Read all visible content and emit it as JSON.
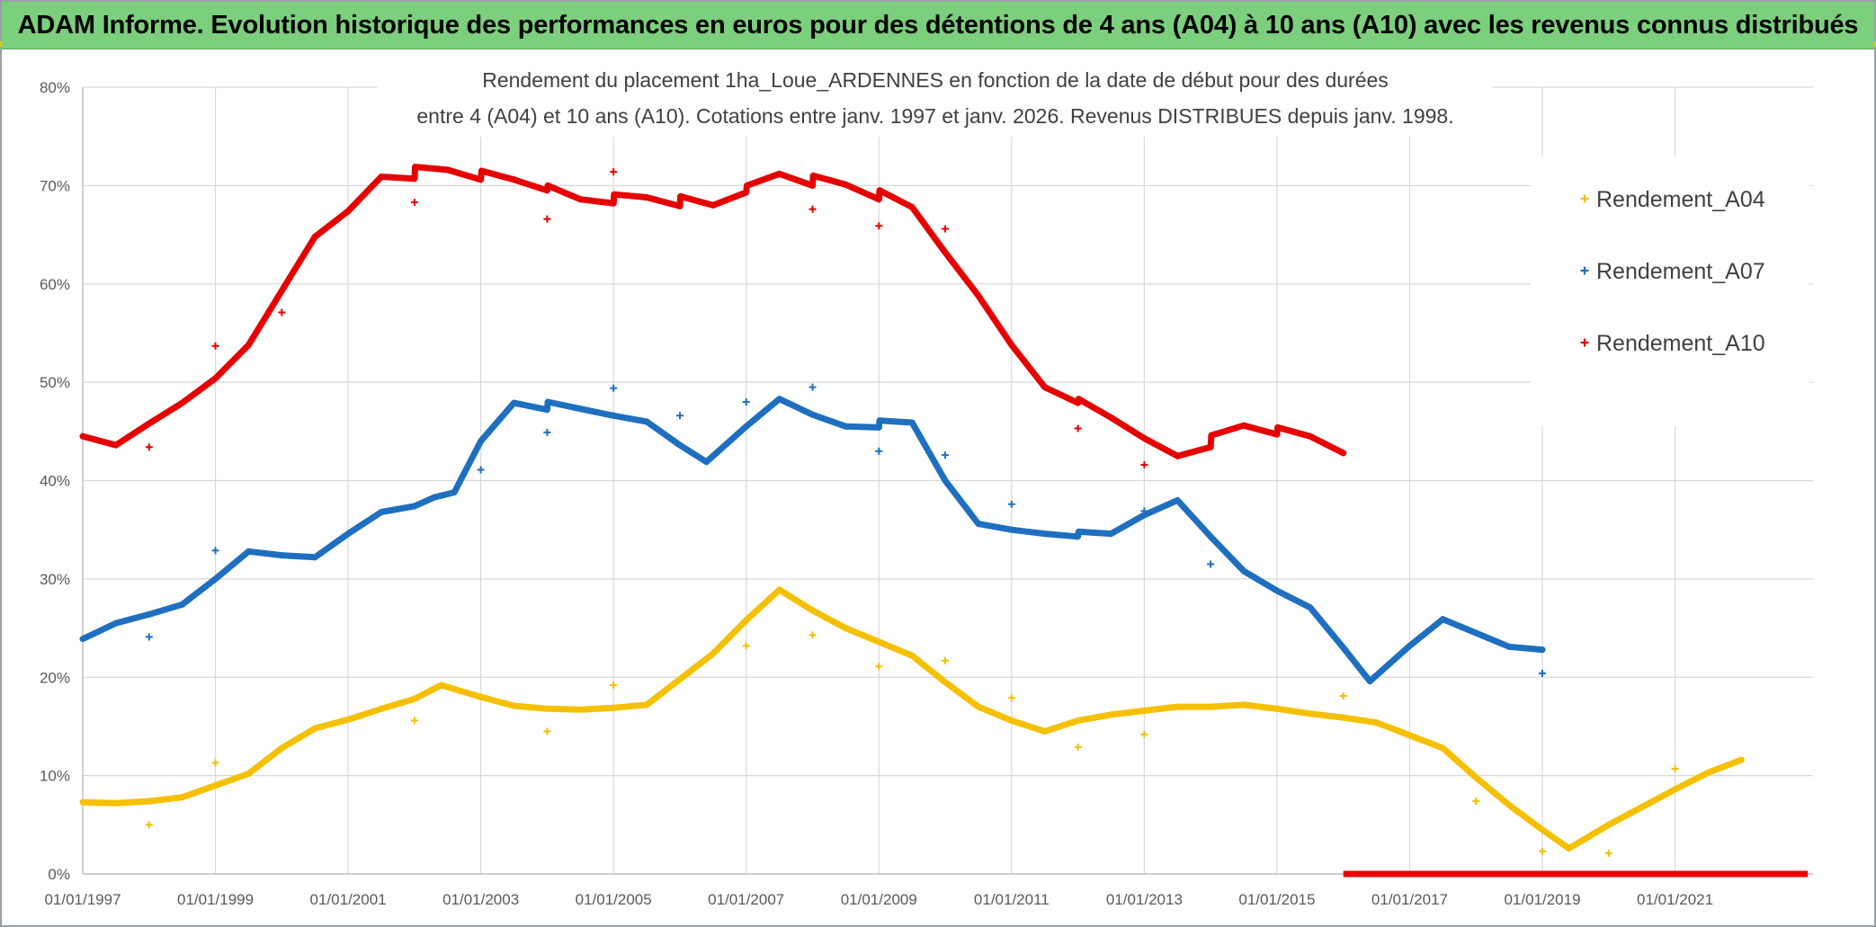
{
  "header": {
    "title": "ADAM Informe. Evolution historique des performances en euros pour des détentions de 4 ans (A04) à 10 ans (A10) avec les revenus connus distribués"
  },
  "chart_data": {
    "type": "scatter",
    "title_line1": "Rendement du placement 1ha_Loue_ARDENNES en fonction de la date de début pour des durées",
    "title_line2": "entre 4 (A04) et 10 ans (A10). Cotations entre janv. 1997 et janv. 2026. Revenus DISTRIBUES depuis janv. 1998.",
    "xlabel": "",
    "ylabel": "",
    "xlim": [
      1997.0,
      2023.08
    ],
    "ylim": [
      0,
      80
    ],
    "x_ticks": [
      1997,
      1999,
      2001,
      2003,
      2005,
      2007,
      2009,
      2011,
      2013,
      2015,
      2017,
      2019,
      2021
    ],
    "x_tick_labels": [
      "01/01/1997",
      "01/01/1999",
      "01/01/2001",
      "01/01/2003",
      "01/01/2005",
      "01/01/2007",
      "01/01/2009",
      "01/01/2011",
      "01/01/2013",
      "01/01/2015",
      "01/01/2017",
      "01/01/2019",
      "01/01/2021"
    ],
    "y_ticks": [
      0,
      10,
      20,
      30,
      40,
      50,
      60,
      70,
      80
    ],
    "y_tick_labels": [
      "0%",
      "10%",
      "20%",
      "30%",
      "40%",
      "50%",
      "60%",
      "70%",
      "80%"
    ],
    "grid": true,
    "legend_position": "top-right",
    "series": [
      {
        "name": "Rendement_A04",
        "color": "#f5c000",
        "points": [
          [
            1997.0,
            7.3
          ],
          [
            1997.5,
            7.2
          ],
          [
            1998.0,
            7.4
          ],
          [
            1998.5,
            7.8
          ],
          [
            1999.0,
            9.0
          ],
          [
            1999.5,
            10.2
          ],
          [
            2000.0,
            12.8
          ],
          [
            2000.5,
            14.8
          ],
          [
            2001.0,
            15.7
          ],
          [
            2001.5,
            16.8
          ],
          [
            2002.0,
            17.8
          ],
          [
            2002.4,
            19.2
          ],
          [
            2003.0,
            18.0
          ],
          [
            2003.5,
            17.1
          ],
          [
            2004.0,
            16.8
          ],
          [
            2004.5,
            16.7
          ],
          [
            2005.0,
            16.9
          ],
          [
            2005.5,
            17.2
          ],
          [
            2006.0,
            19.8
          ],
          [
            2006.5,
            22.4
          ],
          [
            2007.0,
            25.8
          ],
          [
            2007.5,
            28.9
          ],
          [
            2008.0,
            26.8
          ],
          [
            2008.5,
            25.0
          ],
          [
            2009.0,
            23.6
          ],
          [
            2009.5,
            22.2
          ],
          [
            2010.0,
            19.5
          ],
          [
            2010.5,
            17.0
          ],
          [
            2011.0,
            15.6
          ],
          [
            2011.5,
            14.5
          ],
          [
            2012.0,
            15.6
          ],
          [
            2012.5,
            16.2
          ],
          [
            2013.0,
            16.6
          ],
          [
            2013.5,
            17.0
          ],
          [
            2014.0,
            17.0
          ],
          [
            2014.5,
            17.2
          ],
          [
            2015.0,
            16.8
          ],
          [
            2015.5,
            16.3
          ],
          [
            2016.0,
            15.9
          ],
          [
            2016.5,
            15.4
          ],
          [
            2017.0,
            14.1
          ],
          [
            2017.5,
            12.8
          ],
          [
            2018.0,
            9.8
          ],
          [
            2018.5,
            7.0
          ],
          [
            2019.0,
            4.5
          ],
          [
            2019.4,
            2.6
          ],
          [
            2020.0,
            5.0
          ],
          [
            2020.5,
            6.8
          ],
          [
            2021.0,
            8.6
          ],
          [
            2021.5,
            10.3
          ],
          [
            2022.0,
            11.6
          ]
        ],
        "outliers": [
          [
            1998.0,
            5.0
          ],
          [
            1999.0,
            11.3
          ],
          [
            2002.0,
            15.6
          ],
          [
            2004.0,
            14.5
          ],
          [
            2005.0,
            19.2
          ],
          [
            2007.0,
            23.2
          ],
          [
            2008.0,
            24.3
          ],
          [
            2009.0,
            21.1
          ],
          [
            2010.0,
            21.7
          ],
          [
            2011.0,
            17.9
          ],
          [
            2012.0,
            12.9
          ],
          [
            2013.0,
            14.2
          ],
          [
            2016.0,
            18.1
          ],
          [
            2018.0,
            7.4
          ],
          [
            2019.0,
            2.3
          ],
          [
            2020.0,
            2.1
          ],
          [
            2021.0,
            10.7
          ]
        ]
      },
      {
        "name": "Rendement_A07",
        "color": "#1f6fc0",
        "points": [
          [
            1997.0,
            23.9
          ],
          [
            1997.5,
            25.5
          ],
          [
            1998.0,
            26.4
          ],
          [
            1998.5,
            27.4
          ],
          [
            1999.0,
            30.0
          ],
          [
            1999.5,
            32.8
          ],
          [
            2000.0,
            32.4
          ],
          [
            2000.5,
            32.2
          ],
          [
            2001.0,
            34.6
          ],
          [
            2001.5,
            36.8
          ],
          [
            2002.0,
            37.4
          ],
          [
            2002.3,
            38.3
          ],
          [
            2002.6,
            38.8
          ],
          [
            2003.0,
            44.0
          ],
          [
            2003.5,
            47.9
          ],
          [
            2004.0,
            47.2
          ],
          [
            2004.01,
            48.0
          ],
          [
            2004.5,
            47.3
          ],
          [
            2005.0,
            46.6
          ],
          [
            2005.5,
            46.0
          ],
          [
            2006.0,
            43.6
          ],
          [
            2006.4,
            41.9
          ],
          [
            2007.0,
            45.5
          ],
          [
            2007.5,
            48.3
          ],
          [
            2008.0,
            46.7
          ],
          [
            2008.5,
            45.5
          ],
          [
            2009.0,
            45.4
          ],
          [
            2009.01,
            46.1
          ],
          [
            2009.5,
            45.9
          ],
          [
            2010.0,
            40.0
          ],
          [
            2010.5,
            35.6
          ],
          [
            2011.0,
            35.0
          ],
          [
            2011.5,
            34.6
          ],
          [
            2012.0,
            34.3
          ],
          [
            2012.01,
            34.8
          ],
          [
            2012.5,
            34.6
          ],
          [
            2013.0,
            36.5
          ],
          [
            2013.5,
            38.0
          ],
          [
            2014.0,
            34.3
          ],
          [
            2014.5,
            30.8
          ],
          [
            2015.0,
            28.8
          ],
          [
            2015.5,
            27.1
          ],
          [
            2016.0,
            23.0
          ],
          [
            2016.4,
            19.6
          ],
          [
            2017.0,
            23.2
          ],
          [
            2017.5,
            25.9
          ],
          [
            2018.0,
            24.5
          ],
          [
            2018.5,
            23.1
          ],
          [
            2019.0,
            22.8
          ]
        ],
        "outliers": [
          [
            1998.0,
            24.1
          ],
          [
            1999.0,
            32.9
          ],
          [
            2003.0,
            41.1
          ],
          [
            2004.0,
            44.9
          ],
          [
            2005.0,
            49.4
          ],
          [
            2006.0,
            46.6
          ],
          [
            2007.0,
            48.0
          ],
          [
            2008.0,
            49.5
          ],
          [
            2009.0,
            43.0
          ],
          [
            2010.0,
            42.6
          ],
          [
            2011.0,
            37.6
          ],
          [
            2013.0,
            36.9
          ],
          [
            2014.0,
            31.5
          ],
          [
            2019.0,
            20.4
          ]
        ]
      },
      {
        "name": "Rendement_A10",
        "color": "#e60000",
        "points": [
          [
            1997.0,
            44.5
          ],
          [
            1997.5,
            43.6
          ],
          [
            1998.0,
            45.8
          ],
          [
            1998.5,
            47.9
          ],
          [
            1999.0,
            50.4
          ],
          [
            1999.5,
            53.8
          ],
          [
            2000.0,
            59.3
          ],
          [
            2000.5,
            64.8
          ],
          [
            2001.0,
            67.4
          ],
          [
            2001.5,
            70.9
          ],
          [
            2002.0,
            70.7
          ],
          [
            2002.01,
            71.9
          ],
          [
            2002.5,
            71.6
          ],
          [
            2003.0,
            70.6
          ],
          [
            2003.01,
            71.5
          ],
          [
            2003.5,
            70.6
          ],
          [
            2004.0,
            69.5
          ],
          [
            2004.01,
            70.0
          ],
          [
            2004.5,
            68.6
          ],
          [
            2005.0,
            68.2
          ],
          [
            2005.01,
            69.1
          ],
          [
            2005.5,
            68.8
          ],
          [
            2006.0,
            67.9
          ],
          [
            2006.01,
            68.9
          ],
          [
            2006.5,
            68.0
          ],
          [
            2007.0,
            69.3
          ],
          [
            2007.01,
            70.0
          ],
          [
            2007.5,
            71.2
          ],
          [
            2008.0,
            70.0
          ],
          [
            2008.01,
            71.0
          ],
          [
            2008.5,
            70.1
          ],
          [
            2009.0,
            68.6
          ],
          [
            2009.01,
            69.5
          ],
          [
            2009.5,
            67.8
          ],
          [
            2010.0,
            63.2
          ],
          [
            2010.5,
            58.8
          ],
          [
            2011.0,
            53.8
          ],
          [
            2011.5,
            49.5
          ],
          [
            2012.0,
            47.9
          ],
          [
            2012.01,
            48.3
          ],
          [
            2012.5,
            46.4
          ],
          [
            2013.0,
            44.3
          ],
          [
            2013.5,
            42.5
          ],
          [
            2014.0,
            43.4
          ],
          [
            2014.01,
            44.6
          ],
          [
            2014.5,
            45.6
          ],
          [
            2015.0,
            44.7
          ],
          [
            2015.01,
            45.4
          ],
          [
            2015.5,
            44.5
          ],
          [
            2016.0,
            42.8
          ]
        ],
        "outliers": [
          [
            1998.0,
            43.4
          ],
          [
            1999.0,
            53.7
          ],
          [
            2000.0,
            57.1
          ],
          [
            2002.0,
            68.3
          ],
          [
            2004.0,
            66.6
          ],
          [
            2005.0,
            71.4
          ],
          [
            2008.0,
            67.6
          ],
          [
            2009.0,
            65.9
          ],
          [
            2010.0,
            65.6
          ],
          [
            2012.0,
            45.3
          ],
          [
            2013.0,
            41.6
          ]
        ],
        "zero_run": [
          2016.0,
          2023.0
        ]
      }
    ]
  }
}
